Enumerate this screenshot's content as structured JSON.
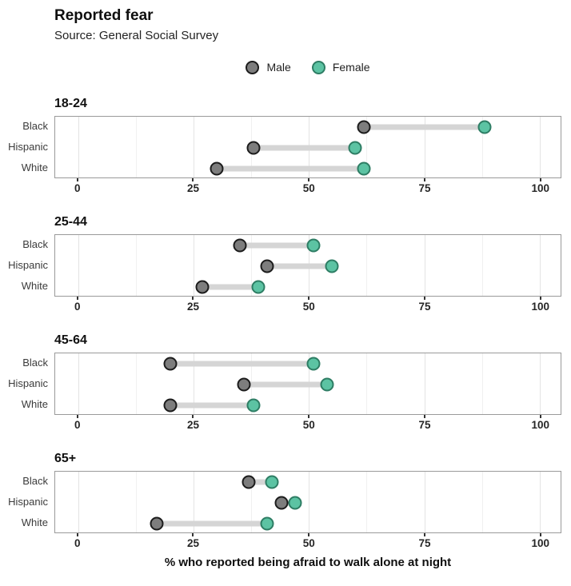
{
  "header": {
    "title": "Reported fear",
    "subtitle": "Source: General Social Survey"
  },
  "chart_data": {
    "type": "dumbbell",
    "title": "Reported fear",
    "subtitle": "Source: General Social Survey",
    "xlabel": "% who reported being afraid to walk alone at night",
    "xlim": [
      0,
      100
    ],
    "x_ticks": [
      0,
      25,
      50,
      75,
      100
    ],
    "x_minor_gridlines": [
      12.5,
      37.5,
      62.5,
      87.5
    ],
    "x_scale": {
      "x0_pct": 4.53,
      "x100_pct": 95.86
    },
    "grid": "vertical only",
    "legend_position": "top center",
    "legend": [
      {
        "name": "Male",
        "color": "#7d7d7d",
        "border": "#1c1c1c"
      },
      {
        "name": "Female",
        "color": "#5cc3a3",
        "border": "#2e7d64"
      }
    ],
    "categories": [
      "Black",
      "Hispanic",
      "White"
    ],
    "facets": [
      {
        "label": "18-24",
        "rows": [
          {
            "category": "Black",
            "male": 62,
            "female": 88
          },
          {
            "category": "Hispanic",
            "male": 38,
            "female": 60
          },
          {
            "category": "White",
            "male": 30,
            "female": 62
          }
        ]
      },
      {
        "label": "25-44",
        "rows": [
          {
            "category": "Black",
            "male": 35,
            "female": 51
          },
          {
            "category": "Hispanic",
            "male": 41,
            "female": 55
          },
          {
            "category": "White",
            "male": 27,
            "female": 39
          }
        ]
      },
      {
        "label": "45-64",
        "rows": [
          {
            "category": "Black",
            "male": 20,
            "female": 51
          },
          {
            "category": "Hispanic",
            "male": 36,
            "female": 54
          },
          {
            "category": "White",
            "male": 20,
            "female": 38
          }
        ]
      },
      {
        "label": "65+",
        "rows": [
          {
            "category": "Black",
            "male": 37,
            "female": 42
          },
          {
            "category": "Hispanic",
            "male": 44,
            "female": 47
          },
          {
            "category": "White",
            "male": 17,
            "female": 41
          }
        ]
      }
    ],
    "colors": {
      "male_fill": "#7d7d7d",
      "male_border": "#1c1c1c",
      "female_fill": "#5cc3a3",
      "female_border": "#2e7d64",
      "connector_bar": "#d5d5d5",
      "panel_border": "#9a9a9a",
      "grid_major": "#e3e3e3",
      "grid_minor": "#f0f0f0"
    }
  }
}
